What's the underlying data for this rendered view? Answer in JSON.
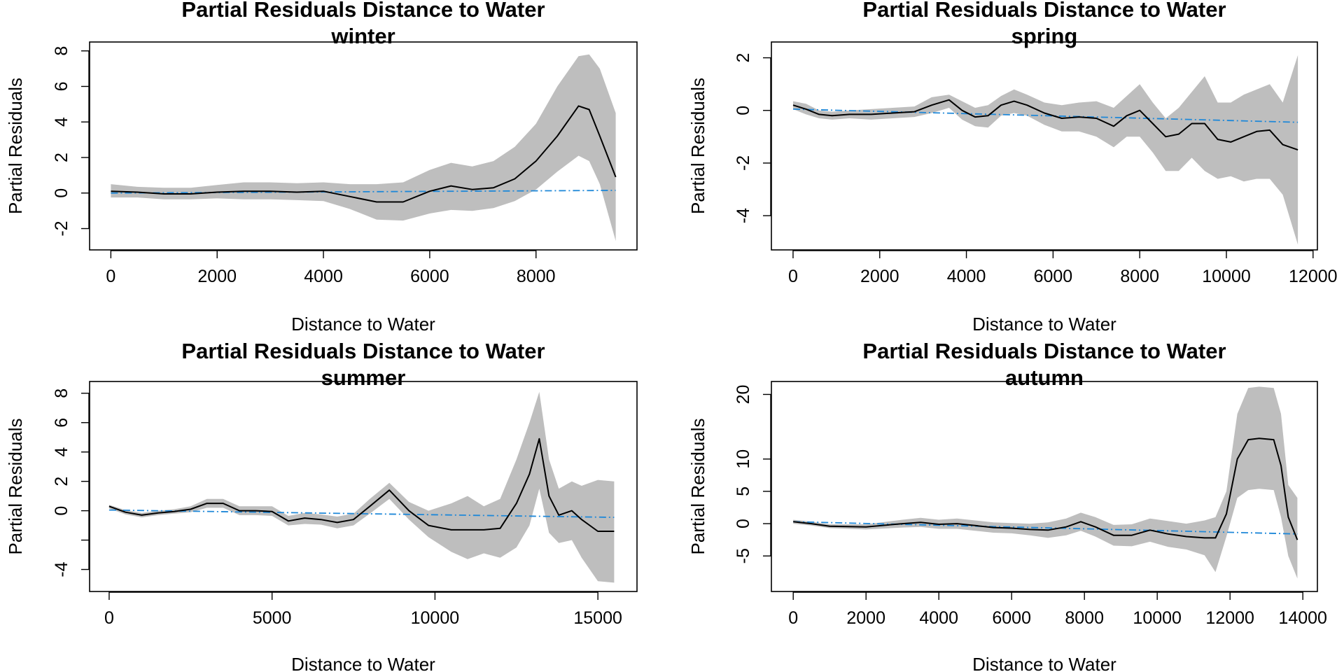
{
  "chart_data": [
    {
      "type": "line",
      "title": "Partial Residuals Distance to Water",
      "subtitle": "winter",
      "xlabel": "Distance to Water",
      "ylabel": "Partial Residuals",
      "xlim": [
        -400,
        9900
      ],
      "ylim": [
        -3.2,
        8.5
      ],
      "xticks": [
        0,
        2000,
        4000,
        6000,
        8000
      ],
      "yticks": [
        -2,
        0,
        2,
        4,
        6,
        8
      ],
      "series": [
        {
          "role": "fit",
          "color": "#000000",
          "x": [
            0,
            500,
            1000,
            1500,
            2000,
            2500,
            3000,
            3500,
            4000,
            4500,
            5000,
            5500,
            6000,
            6400,
            6800,
            7200,
            7600,
            8000,
            8400,
            8800,
            9000,
            9200,
            9500
          ],
          "y": [
            0.1,
            0.05,
            -0.05,
            -0.05,
            0.05,
            0.1,
            0.1,
            0.05,
            0.1,
            -0.2,
            -0.5,
            -0.5,
            0.1,
            0.4,
            0.2,
            0.3,
            0.8,
            1.8,
            3.2,
            4.9,
            4.7,
            3.2,
            0.9
          ]
        },
        {
          "role": "band-upper",
          "color": "#bebebe",
          "x": [
            0,
            500,
            1000,
            1500,
            2000,
            2500,
            3000,
            3500,
            4000,
            4500,
            5000,
            5500,
            6000,
            6400,
            6800,
            7200,
            7600,
            8000,
            8400,
            8800,
            9000,
            9200,
            9500
          ],
          "y": [
            0.5,
            0.35,
            0.3,
            0.3,
            0.45,
            0.6,
            0.6,
            0.55,
            0.6,
            0.5,
            0.5,
            0.6,
            1.3,
            1.7,
            1.5,
            1.8,
            2.6,
            3.9,
            6.0,
            7.7,
            7.8,
            7.0,
            4.5
          ]
        },
        {
          "role": "band-lower",
          "color": "#bebebe",
          "x": [
            0,
            500,
            1000,
            1500,
            2000,
            2500,
            3000,
            3500,
            4000,
            4500,
            5000,
            5500,
            6000,
            6400,
            6800,
            7200,
            7600,
            8000,
            8400,
            8800,
            9000,
            9200,
            9500
          ],
          "y": [
            -0.25,
            -0.25,
            -0.35,
            -0.35,
            -0.3,
            -0.35,
            -0.35,
            -0.4,
            -0.45,
            -0.9,
            -1.5,
            -1.55,
            -1.15,
            -0.95,
            -1.0,
            -0.85,
            -0.45,
            0.2,
            1.2,
            2.1,
            1.8,
            0.5,
            -2.7
          ]
        },
        {
          "role": "linear",
          "color": "#1f88d8",
          "dash": "dotdash",
          "x": [
            0,
            9500
          ],
          "y": [
            0.0,
            0.15
          ]
        }
      ]
    },
    {
      "type": "line",
      "title": "Partial Residuals Distance to Water",
      "subtitle": "spring",
      "xlabel": "Distance to Water",
      "ylabel": "Partial Residuals",
      "xlim": [
        -500,
        12100
      ],
      "ylim": [
        -5.3,
        2.6
      ],
      "xticks": [
        0,
        2000,
        4000,
        6000,
        8000,
        10000,
        12000
      ],
      "yticks": [
        -4,
        -2,
        0,
        2
      ],
      "series": [
        {
          "role": "fit",
          "color": "#000000",
          "x": [
            0,
            300,
            600,
            900,
            1300,
            1800,
            2300,
            2800,
            3200,
            3600,
            3900,
            4200,
            4500,
            4800,
            5100,
            5400,
            5800,
            6200,
            6600,
            7000,
            7400,
            7700,
            8000,
            8300,
            8600,
            8900,
            9200,
            9500,
            9800,
            10100,
            10400,
            10700,
            11000,
            11300,
            11650
          ],
          "y": [
            0.2,
            0.05,
            -0.15,
            -0.2,
            -0.15,
            -0.15,
            -0.1,
            -0.05,
            0.2,
            0.4,
            0.0,
            -0.25,
            -0.2,
            0.2,
            0.35,
            0.2,
            -0.1,
            -0.3,
            -0.25,
            -0.3,
            -0.6,
            -0.2,
            0.0,
            -0.5,
            -1.0,
            -0.9,
            -0.5,
            -0.5,
            -1.1,
            -1.2,
            -1.0,
            -0.8,
            -0.75,
            -1.3,
            -1.5
          ]
        },
        {
          "role": "band-upper",
          "color": "#bebebe",
          "x": [
            0,
            300,
            600,
            900,
            1300,
            1800,
            2300,
            2800,
            3200,
            3600,
            3900,
            4200,
            4500,
            4800,
            5100,
            5400,
            5800,
            6200,
            6600,
            7000,
            7400,
            7700,
            8000,
            8300,
            8600,
            8900,
            9200,
            9500,
            9800,
            10100,
            10400,
            10700,
            11000,
            11300,
            11650
          ],
          "y": [
            0.35,
            0.25,
            0.0,
            -0.05,
            0.0,
            0.05,
            0.1,
            0.15,
            0.5,
            0.6,
            0.35,
            0.1,
            0.2,
            0.55,
            0.8,
            0.6,
            0.3,
            0.2,
            0.3,
            0.35,
            0.1,
            0.55,
            1.0,
            0.3,
            -0.3,
            0.1,
            0.7,
            1.3,
            0.3,
            0.3,
            0.6,
            0.8,
            1.0,
            0.3,
            2.1
          ]
        },
        {
          "role": "band-lower",
          "color": "#bebebe",
          "x": [
            0,
            300,
            600,
            900,
            1300,
            1800,
            2300,
            2800,
            3200,
            3600,
            3900,
            4200,
            4500,
            4800,
            5100,
            5400,
            5800,
            6200,
            6600,
            7000,
            7400,
            7700,
            8000,
            8300,
            8600,
            8900,
            9200,
            9500,
            9800,
            10100,
            10400,
            10700,
            11000,
            11300,
            11650
          ],
          "y": [
            0.05,
            -0.15,
            -0.3,
            -0.35,
            -0.3,
            -0.35,
            -0.3,
            -0.25,
            -0.1,
            0.1,
            -0.35,
            -0.6,
            -0.65,
            -0.2,
            -0.1,
            -0.2,
            -0.55,
            -0.8,
            -0.8,
            -1.0,
            -1.4,
            -1.0,
            -1.0,
            -1.6,
            -2.3,
            -2.3,
            -1.8,
            -2.3,
            -2.6,
            -2.5,
            -2.7,
            -2.6,
            -2.6,
            -3.2,
            -5.1
          ]
        },
        {
          "role": "linear",
          "color": "#1f88d8",
          "dash": "dotdash",
          "x": [
            0,
            11650
          ],
          "y": [
            0.05,
            -0.45
          ]
        }
      ]
    },
    {
      "type": "line",
      "title": "Partial Residuals Distance to Water",
      "subtitle": "summer",
      "xlabel": "Distance to Water",
      "ylabel": "Partial Residuals",
      "xlim": [
        -600,
        16200
      ],
      "ylim": [
        -5.5,
        8.8
      ],
      "xticks": [
        0,
        5000,
        10000,
        15000
      ],
      "yticks": [
        -4,
        0,
        2,
        4,
        6,
        8
      ],
      "yticks_hidden": [
        -2
      ],
      "series": [
        {
          "role": "fit",
          "color": "#000000",
          "x": [
            0,
            500,
            1000,
            1500,
            2000,
            2500,
            3000,
            3500,
            4000,
            4500,
            5000,
            5500,
            6000,
            6500,
            7000,
            7500,
            8000,
            8600,
            9200,
            9800,
            10500,
            11000,
            11500,
            12000,
            12500,
            12900,
            13200,
            13500,
            13800,
            14200,
            14500,
            15000,
            15500
          ],
          "y": [
            0.3,
            -0.1,
            -0.3,
            -0.15,
            -0.05,
            0.1,
            0.5,
            0.5,
            0.0,
            0.0,
            -0.05,
            -0.7,
            -0.5,
            -0.6,
            -0.8,
            -0.6,
            0.3,
            1.4,
            0.0,
            -1.0,
            -1.3,
            -1.3,
            -1.3,
            -1.2,
            0.5,
            2.5,
            4.9,
            1.0,
            -0.3,
            0.0,
            -0.6,
            -1.4,
            -1.4
          ]
        },
        {
          "role": "band-upper",
          "color": "#bebebe",
          "x": [
            0,
            500,
            1000,
            1500,
            2000,
            2500,
            3000,
            3500,
            4000,
            4500,
            5000,
            5500,
            6000,
            6500,
            7000,
            7500,
            8000,
            8600,
            9200,
            9800,
            10500,
            11000,
            11500,
            12000,
            12500,
            12900,
            13200,
            13500,
            13800,
            14200,
            14500,
            15000,
            15500
          ],
          "y": [
            0.4,
            0.05,
            -0.15,
            0.0,
            0.1,
            0.3,
            0.8,
            0.8,
            0.3,
            0.3,
            0.3,
            -0.35,
            -0.15,
            -0.25,
            -0.4,
            -0.2,
            0.8,
            1.9,
            0.6,
            0.0,
            0.5,
            1.0,
            0.3,
            0.8,
            3.5,
            6.0,
            8.1,
            3.5,
            1.5,
            2.0,
            1.7,
            2.1,
            2.0
          ]
        },
        {
          "role": "band-lower",
          "color": "#bebebe",
          "x": [
            0,
            500,
            1000,
            1500,
            2000,
            2500,
            3000,
            3500,
            4000,
            4500,
            5000,
            5500,
            6000,
            6500,
            7000,
            7500,
            8000,
            8600,
            9200,
            9800,
            10500,
            11000,
            11500,
            12000,
            12500,
            12900,
            13200,
            13500,
            13800,
            14200,
            14500,
            15000,
            15500
          ],
          "y": [
            0.15,
            -0.25,
            -0.45,
            -0.3,
            -0.2,
            -0.1,
            0.2,
            0.2,
            -0.3,
            -0.3,
            -0.35,
            -1.0,
            -0.9,
            -0.95,
            -1.2,
            -1.0,
            -0.2,
            0.8,
            -0.6,
            -1.8,
            -2.8,
            -3.3,
            -2.9,
            -3.2,
            -2.5,
            -1.0,
            1.5,
            -1.5,
            -2.2,
            -2.0,
            -3.2,
            -4.8,
            -4.9
          ]
        },
        {
          "role": "linear",
          "color": "#1f88d8",
          "dash": "dotdash",
          "x": [
            0,
            15500
          ],
          "y": [
            0.05,
            -0.45
          ]
        }
      ]
    },
    {
      "type": "line",
      "title": "Partial Residuals Distance to Water",
      "subtitle": "autumn",
      "xlabel": "Distance to Water",
      "ylabel": "Partial Residuals",
      "xlim": [
        -600,
        14400
      ],
      "ylim": [
        -10.5,
        22.0
      ],
      "xticks": [
        0,
        2000,
        4000,
        6000,
        8000,
        10000,
        12000,
        14000
      ],
      "yticks": [
        -5,
        0,
        5,
        10,
        20
      ],
      "series": [
        {
          "role": "fit",
          "color": "#000000",
          "x": [
            0,
            500,
            1000,
            2000,
            3000,
            3500,
            4000,
            4500,
            5000,
            5500,
            6000,
            6500,
            7000,
            7500,
            7900,
            8300,
            8800,
            9300,
            9800,
            10300,
            10800,
            11300,
            11600,
            11900,
            12200,
            12500,
            12800,
            13200,
            13400,
            13600,
            13850
          ],
          "y": [
            0.3,
            0.0,
            -0.4,
            -0.5,
            0.0,
            0.2,
            -0.1,
            0.0,
            -0.3,
            -0.6,
            -0.7,
            -0.9,
            -1.0,
            -0.5,
            0.3,
            -0.5,
            -1.8,
            -1.8,
            -1.0,
            -1.6,
            -2.0,
            -2.2,
            -2.2,
            1.5,
            10.0,
            13.0,
            13.2,
            13.0,
            9.0,
            1.0,
            -2.5
          ]
        },
        {
          "role": "band-upper",
          "color": "#bebebe",
          "x": [
            0,
            500,
            1000,
            2000,
            3000,
            3500,
            4000,
            4500,
            5000,
            5500,
            6000,
            6500,
            7000,
            7500,
            7900,
            8300,
            8800,
            9300,
            9800,
            10300,
            10800,
            11300,
            11600,
            11900,
            12200,
            12500,
            12800,
            13200,
            13400,
            13600,
            13850
          ],
          "y": [
            0.6,
            0.3,
            -0.1,
            -0.1,
            0.6,
            0.9,
            0.6,
            0.8,
            0.5,
            0.2,
            0.1,
            0.0,
            0.2,
            0.8,
            1.7,
            1.0,
            -0.2,
            -0.1,
            0.8,
            0.4,
            0.0,
            0.5,
            1.0,
            5.0,
            17.0,
            21.0,
            21.2,
            21.0,
            17.0,
            6.0,
            4.0
          ]
        },
        {
          "role": "band-lower",
          "color": "#bebebe",
          "x": [
            0,
            500,
            1000,
            2000,
            3000,
            3500,
            4000,
            4500,
            5000,
            5500,
            6000,
            6500,
            7000,
            7500,
            7900,
            8300,
            8800,
            9300,
            9800,
            10300,
            10800,
            11300,
            11600,
            11900,
            12200,
            12500,
            12800,
            13200,
            13400,
            13600,
            13850
          ],
          "y": [
            0.0,
            -0.3,
            -0.7,
            -0.9,
            -0.6,
            -0.5,
            -0.8,
            -0.8,
            -1.1,
            -1.4,
            -1.5,
            -1.8,
            -2.2,
            -1.8,
            -1.1,
            -2.0,
            -3.4,
            -3.5,
            -2.8,
            -3.6,
            -4.0,
            -4.9,
            -7.5,
            -2.0,
            4.0,
            5.2,
            5.4,
            5.2,
            1.0,
            -5.0,
            -8.5
          ]
        },
        {
          "role": "linear",
          "color": "#1f88d8",
          "dash": "dotdash",
          "x": [
            0,
            13850
          ],
          "y": [
            0.3,
            -1.6
          ]
        }
      ]
    }
  ]
}
